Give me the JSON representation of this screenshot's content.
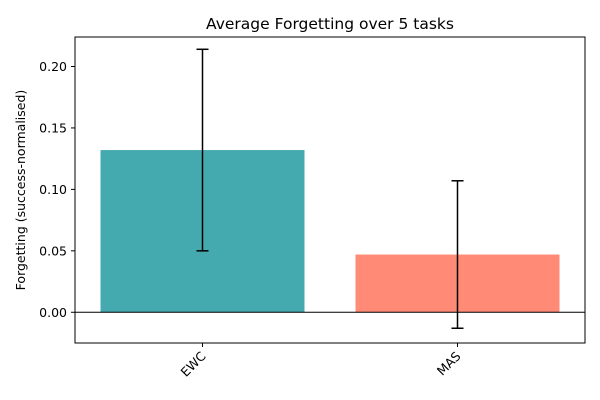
{
  "chart_data": {
    "type": "bar",
    "title": "Average Forgetting over 5 tasks",
    "xlabel": "",
    "ylabel": "Forgetting (success-normalised)",
    "categories": [
      "EWC",
      "MAS"
    ],
    "values": [
      0.132,
      0.047
    ],
    "error_low": [
      0.05,
      -0.013
    ],
    "error_high": [
      0.214,
      0.107
    ],
    "colors": [
      "#44aab0",
      "#ff8b77"
    ],
    "ylim": [
      -0.025,
      0.224
    ],
    "yticks": [
      0.0,
      0.05,
      0.1,
      0.15,
      0.2
    ],
    "ytick_labels": [
      "0.00",
      "0.05",
      "0.10",
      "0.15",
      "0.20"
    ],
    "zero_line": true,
    "grid": false,
    "legend": "none"
  }
}
